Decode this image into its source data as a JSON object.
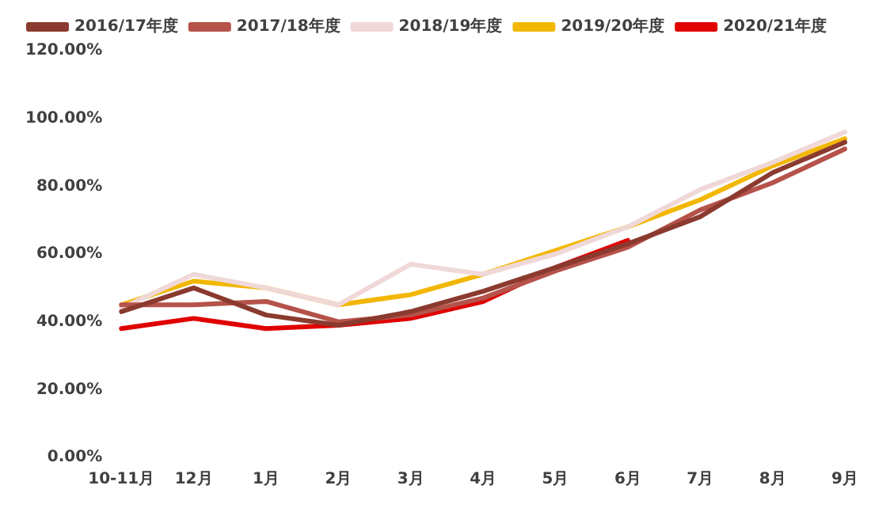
{
  "chart_data": {
    "type": "line",
    "categories": [
      "10-11月",
      "12月",
      "1月",
      "2月",
      "3月",
      "4月",
      "5月",
      "6月",
      "7月",
      "8月",
      "9月"
    ],
    "series": [
      {
        "name": "2016/17年度",
        "color": "#8b3a2f",
        "values": [
          43,
          50,
          42,
          39,
          43,
          49,
          56,
          63,
          71,
          84,
          93
        ]
      },
      {
        "name": "2017/18年度",
        "color": "#b5524a",
        "values": [
          45,
          45,
          46,
          40,
          42,
          47,
          55,
          62,
          73,
          81,
          91
        ]
      },
      {
        "name": "2018/19年度",
        "color": "#f0d8d8",
        "values": [
          44,
          54,
          50,
          45,
          57,
          54,
          60,
          68,
          79,
          87,
          96
        ]
      },
      {
        "name": "2019/20年度",
        "color": "#f2b705",
        "values": [
          45,
          52,
          50,
          45,
          48,
          54,
          61,
          68,
          76,
          86,
          94
        ]
      },
      {
        "name": "2020/21年度",
        "color": "#e00000",
        "values": [
          38,
          41,
          38,
          39,
          41,
          46,
          56,
          64,
          null,
          null,
          null
        ]
      }
    ],
    "ylim": [
      0,
      120
    ],
    "yticks": [
      {
        "value": 0,
        "label": "0.00%"
      },
      {
        "value": 20,
        "label": "20.00%"
      },
      {
        "value": 40,
        "label": "40.00%"
      },
      {
        "value": 60,
        "label": "60.00%"
      },
      {
        "value": 80,
        "label": "80.00%"
      },
      {
        "value": 100,
        "label": "100.00%"
      },
      {
        "value": 120,
        "label": "120.00%"
      }
    ],
    "grid": false,
    "legend": "top",
    "marker": "none",
    "line_style": "solid"
  }
}
